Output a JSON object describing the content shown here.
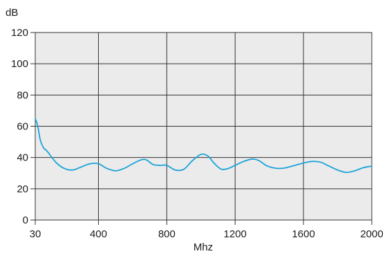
{
  "chart_data": {
    "type": "line",
    "title": "",
    "xlabel": "Mhz",
    "ylabel": "dB",
    "xlim": [
      30,
      2000
    ],
    "ylim": [
      0,
      120
    ],
    "x_ticks": [
      30,
      400,
      800,
      1200,
      1600,
      2000
    ],
    "y_ticks": [
      0,
      20,
      40,
      60,
      80,
      100,
      120
    ],
    "grid": true,
    "legend": "none",
    "colors": {
      "plot_background": "#ebebeb",
      "grid": "#333333",
      "line": "#1aa3d9"
    },
    "series": [
      {
        "x": [
          30,
          45,
          60,
          80,
          100,
          150,
          200,
          250,
          300,
          350,
          400,
          450,
          500,
          550,
          600,
          650,
          680,
          720,
          760,
          800,
          850,
          900,
          950,
          1000,
          1040,
          1080,
          1120,
          1160,
          1200,
          1250,
          1300,
          1340,
          1380,
          1420,
          1460,
          1500,
          1550,
          1600,
          1650,
          1700,
          1750,
          1800,
          1850,
          1900,
          1950,
          2000
        ],
        "values": [
          65,
          60,
          51,
          46,
          44,
          37,
          33,
          32,
          34,
          36,
          36,
          33,
          31.5,
          33,
          36,
          38.5,
          38.5,
          35.5,
          35,
          35,
          32,
          32.5,
          38,
          42,
          41,
          36,
          32.5,
          33,
          35,
          37.5,
          39,
          38,
          35,
          33.5,
          33,
          33.5,
          35,
          36.5,
          37.5,
          37,
          34.5,
          32,
          30.5,
          31.5,
          33.5,
          34.5
        ]
      }
    ]
  }
}
